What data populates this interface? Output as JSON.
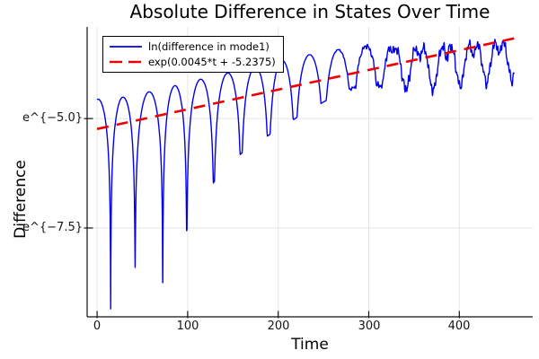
{
  "chart_data": {
    "type": "line",
    "title": "Absolute Difference in States Over Time",
    "xlabel": "Time",
    "ylabel": "Difference",
    "xticks": [
      0,
      100,
      200,
      300,
      400
    ],
    "yticks": [
      {
        "label": "e^{−5.0}",
        "value": -5.0
      },
      {
        "label": "e^{−7.5}",
        "value": -7.5
      }
    ],
    "xlim": [
      -11,
      481
    ],
    "ylim": [
      -9.53,
      -2.905
    ],
    "grid": true,
    "legend_position": "top-left",
    "colors": {
      "grid": "#e4e4e4",
      "axis": "#111111",
      "text": "#000000"
    },
    "series": [
      {
        "name": "ln(difference in mode1)",
        "color": "#0000ee",
        "line_style": "solid",
        "model": {
          "description": "ln|difference| : rising envelope with periodic deep dips at beat-pattern zeros, becoming noisy after t~300",
          "t_start": 0,
          "t_end": 460.5,
          "dt": 0.4,
          "peak_envelope": [
            [
              0,
              -4.56
            ],
            [
              30,
              -4.51
            ],
            [
              60,
              -4.38
            ],
            [
              90,
              -4.23
            ],
            [
              120,
              -4.08
            ],
            [
              150,
              -3.95
            ],
            [
              180,
              -3.82
            ],
            [
              210,
              -3.68
            ],
            [
              240,
              -3.56
            ],
            [
              270,
              -3.47
            ],
            [
              300,
              -3.4
            ],
            [
              330,
              -3.35
            ],
            [
              360,
              -3.3
            ],
            [
              390,
              -3.25
            ],
            [
              420,
              -3.21
            ],
            [
              462,
              -3.15
            ]
          ],
          "spike_times": [
            -13,
            15,
            42,
            72.5,
            99,
            129,
            159,
            189.5,
            218.5,
            250,
            282,
            312,
            341,
            371,
            401,
            430,
            458,
            486
          ],
          "spike_bottoms": [
            -9.0,
            -9.35,
            -8.4,
            -8.75,
            -7.55,
            -6.45,
            -5.8,
            -5.38,
            -5.0,
            -4.62,
            -4.3,
            -4.18,
            -4.05,
            -3.95,
            -3.85,
            -3.78,
            -3.72,
            -3.66
          ],
          "notch": {
            "start": 300,
            "full": 365,
            "depth": 0.3,
            "floor": 0.25
          },
          "jitter": {
            "start": 255,
            "full": 340,
            "terms": [
              [
                0.06,
                2.23,
                1.3
              ],
              [
                0.045,
                3.71,
                0.4
              ],
              [
                0.04,
                1.13,
                2.2
              ]
            ]
          }
        }
      },
      {
        "name": "exp(0.0045*t + -5.2375)",
        "color": "#ee0000",
        "line_style": "dashed",
        "model": {
          "slope": 0.0045,
          "intercept": -5.2375,
          "t_start": 0,
          "t_end": 462
        }
      }
    ]
  }
}
